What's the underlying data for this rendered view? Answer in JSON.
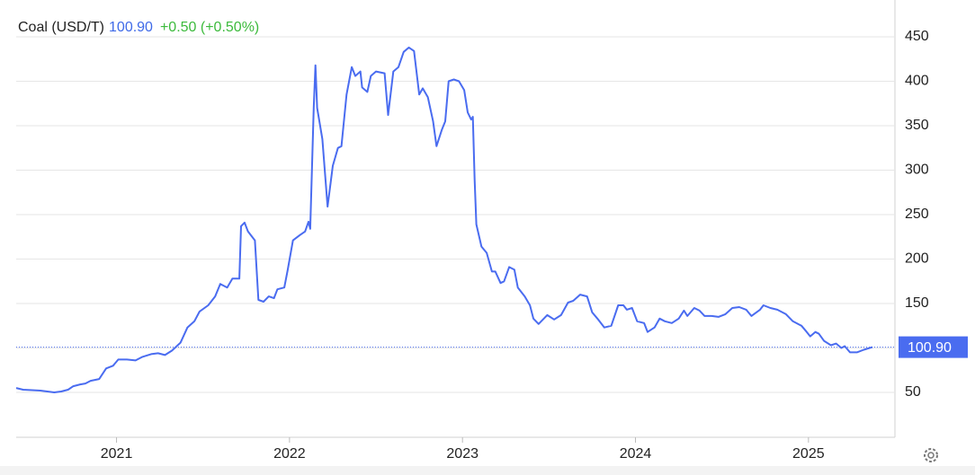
{
  "chart_data": {
    "type": "line",
    "header": {
      "name": "Coal (USD/T)",
      "price": "100.90",
      "change": "+0.50 (+0.50%)"
    },
    "xlim": [
      2020.42,
      2025.5
    ],
    "xticks": [
      2021,
      2022,
      2023,
      2024,
      2025
    ],
    "ylim": [
      0,
      480
    ],
    "yticks": [
      50,
      100,
      150,
      200,
      250,
      300,
      350,
      400,
      450
    ],
    "grid": true,
    "series": [
      {
        "name": "Coal (USD/T)",
        "color": "#4a6cf0",
        "x": [
          2020.42,
          2020.46,
          2020.56,
          2020.64,
          2020.68,
          2020.72,
          2020.75,
          2020.79,
          2020.82,
          2020.85,
          2020.9,
          2020.94,
          2020.98,
          2021.01,
          2021.06,
          2021.11,
          2021.15,
          2021.2,
          2021.24,
          2021.28,
          2021.32,
          2021.37,
          2021.41,
          2021.45,
          2021.48,
          2021.53,
          2021.57,
          2021.6,
          2021.64,
          2021.67,
          2021.71,
          2021.72,
          2021.74,
          2021.76,
          2021.8,
          2021.82,
          2021.85,
          2021.88,
          2021.91,
          2021.93,
          2021.97,
          2021.99,
          2022.02,
          2022.06,
          2022.09,
          2022.11,
          2022.12,
          2022.14,
          2022.15,
          2022.16,
          2022.19,
          2022.22,
          2022.25,
          2022.28,
          2022.3,
          2022.33,
          2022.36,
          2022.38,
          2022.41,
          2022.42,
          2022.45,
          2022.47,
          2022.5,
          2022.55,
          2022.57,
          2022.6,
          2022.63,
          2022.66,
          2022.69,
          2022.72,
          2022.75,
          2022.77,
          2022.8,
          2022.83,
          2022.85,
          2022.88,
          2022.9,
          2022.92,
          2022.95,
          2022.98,
          2023.01,
          2023.03,
          2023.05,
          2023.06,
          2023.07,
          2023.08,
          2023.11,
          2023.14,
          2023.17,
          2023.19,
          2023.22,
          2023.24,
          2023.27,
          2023.3,
          2023.32,
          2023.36,
          2023.39,
          2023.41,
          2023.44,
          2023.46,
          2023.49,
          2023.53,
          2023.57,
          2023.61,
          2023.64,
          2023.68,
          2023.72,
          2023.75,
          2023.78,
          2023.82,
          2023.86,
          2023.9,
          2023.93,
          2023.95,
          2023.98,
          2024.01,
          2024.05,
          2024.07,
          2024.11,
          2024.14,
          2024.17,
          2024.21,
          2024.25,
          2024.28,
          2024.3,
          2024.34,
          2024.37,
          2024.4,
          2024.44,
          2024.48,
          2024.52,
          2024.56,
          2024.6,
          2024.64,
          2024.67,
          2024.72,
          2024.74,
          2024.78,
          2024.82,
          2024.87,
          2024.91,
          2024.96,
          2024.99,
          2025.01,
          2025.04,
          2025.06,
          2025.09,
          2025.13,
          2025.16,
          2025.19,
          2025.21,
          2025.24,
          2025.28,
          2025.32,
          2025.37
        ],
        "values": [
          55,
          53,
          52,
          50,
          51,
          53,
          57,
          59,
          60,
          63,
          65,
          77,
          80,
          87,
          87,
          86,
          90,
          93,
          94,
          92,
          97,
          106,
          123,
          130,
          141,
          148,
          158,
          172,
          168,
          178,
          178,
          237,
          241,
          231,
          221,
          154,
          152,
          158,
          156,
          166,
          168,
          188,
          221,
          227,
          231,
          242,
          234,
          370,
          418,
          370,
          335,
          259,
          305,
          325,
          327,
          385,
          416,
          406,
          411,
          393,
          388,
          406,
          411,
          409,
          362,
          411,
          416,
          433,
          438,
          434,
          385,
          392,
          382,
          355,
          327,
          345,
          355,
          400,
          402,
          400,
          390,
          365,
          357,
          360,
          289,
          239,
          214,
          207,
          186,
          186,
          173,
          175,
          191,
          188,
          168,
          158,
          148,
          133,
          127,
          131,
          137,
          132,
          137,
          151,
          153,
          160,
          158,
          140,
          133,
          123,
          125,
          148,
          148,
          143,
          145,
          130,
          128,
          118,
          123,
          133,
          130,
          128,
          133,
          142,
          136,
          145,
          142,
          136,
          136,
          135,
          138,
          145,
          146,
          143,
          136,
          143,
          148,
          145,
          143,
          138,
          130,
          125,
          118,
          113,
          118,
          116,
          108,
          103,
          105,
          100,
          102,
          95,
          95,
          98,
          100.9
        ]
      }
    ]
  }
}
